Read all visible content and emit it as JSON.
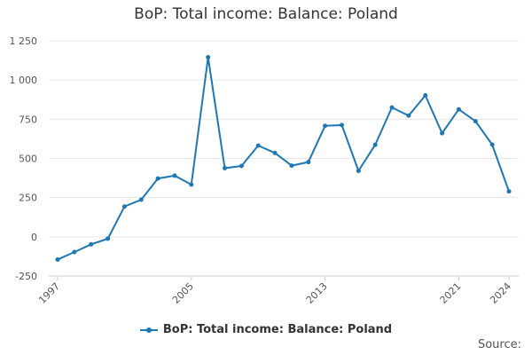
{
  "chart_data": {
    "type": "line",
    "title": "BoP: Total income: Balance: Poland",
    "xlabel": "",
    "ylabel": "",
    "x": [
      1997,
      1998,
      1999,
      2000,
      2001,
      2002,
      2003,
      2004,
      2005,
      2006,
      2007,
      2008,
      2009,
      2010,
      2011,
      2012,
      2013,
      2014,
      2015,
      2016,
      2017,
      2018,
      2019,
      2020,
      2021,
      2022,
      2023,
      2024
    ],
    "series": [
      {
        "name": "BoP: Total income: Balance: Poland",
        "values": [
          -145,
          -97,
          -48,
          -12,
          193,
          237,
          372,
          390,
          333,
          1145,
          438,
          452,
          582,
          535,
          454,
          477,
          708,
          713,
          421,
          587,
          825,
          773,
          902,
          661,
          813,
          737,
          588,
          290
        ]
      }
    ],
    "y_ticks": [
      -250,
      0,
      250,
      500,
      750,
      1000,
      1250
    ],
    "y_tick_labels": [
      "-250",
      "0",
      "250",
      "500",
      "750",
      "1 000",
      "1 250"
    ],
    "x_tick_labels": [
      "1997",
      "2005",
      "2013",
      "2021",
      "2024"
    ],
    "xlim": [
      1997,
      2024
    ],
    "ylim": [
      -250,
      1250
    ],
    "grid": "horizontal",
    "legend_position": "bottom",
    "color": "#1f77b4",
    "source_label": "Source:"
  }
}
